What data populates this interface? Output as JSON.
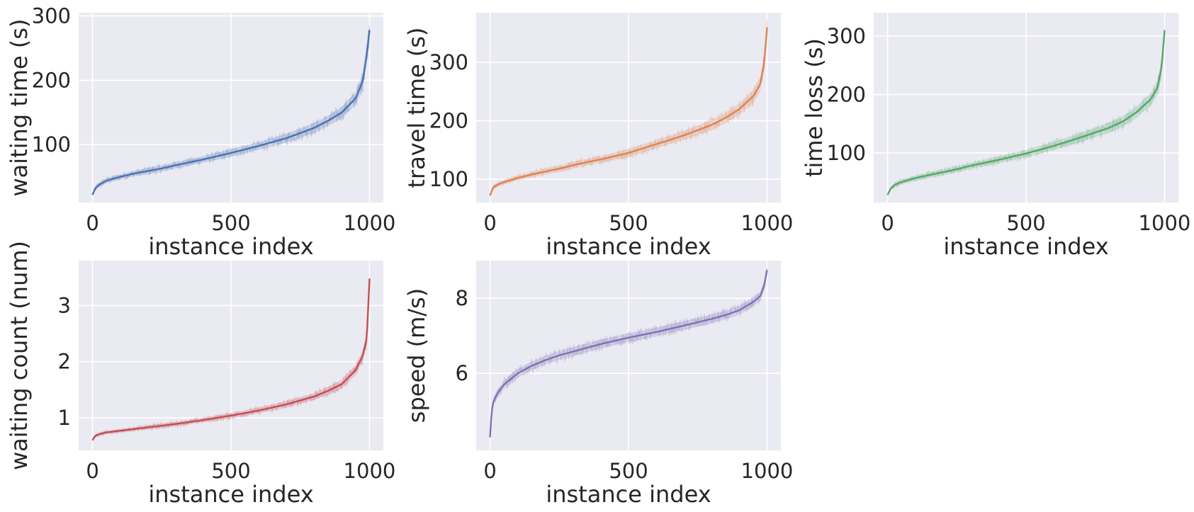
{
  "chart_data": [
    {
      "type": "line",
      "title": "",
      "xlabel": "instance index",
      "ylabel": "waiting time (s)",
      "xlim": [
        -50,
        1050
      ],
      "ylim": [
        10,
        305
      ],
      "xticks": [
        0,
        500,
        1000
      ],
      "yticks": [
        100,
        200,
        300
      ],
      "grid": true,
      "color": "#4c72b0",
      "series": [
        {
          "x": [
            0,
            10,
            25,
            50,
            100,
            150,
            200,
            250,
            300,
            400,
            500,
            600,
            700,
            800,
            850,
            900,
            950,
            975,
            990,
            1000
          ],
          "y": [
            22,
            32,
            38,
            44,
            50,
            55,
            59,
            63,
            68,
            77,
            87,
            98,
            110,
            126,
            137,
            150,
            172,
            198,
            240,
            278
          ],
          "band_half_width": [
            2,
            3,
            4,
            4,
            4,
            4,
            5,
            5,
            5,
            5,
            6,
            6,
            7,
            8,
            8,
            9,
            10,
            12,
            14,
            15
          ]
        }
      ]
    },
    {
      "type": "line",
      "title": "",
      "xlabel": "instance index",
      "ylabel": "travel time (s)",
      "xlim": [
        -50,
        1050
      ],
      "ylim": [
        60,
        385
      ],
      "xticks": [
        0,
        500,
        1000
      ],
      "yticks": [
        100,
        200,
        300
      ],
      "grid": true,
      "color": "#dd8452",
      "series": [
        {
          "x": [
            0,
            10,
            25,
            50,
            100,
            150,
            200,
            250,
            300,
            400,
            500,
            600,
            700,
            800,
            850,
            900,
            950,
            975,
            990,
            1000
          ],
          "y": [
            72,
            85,
            90,
            95,
            102,
            108,
            113,
            118,
            124,
            134,
            145,
            160,
            175,
            193,
            205,
            220,
            242,
            262,
            300,
            360
          ],
          "band_half_width": [
            2,
            3,
            4,
            4,
            4,
            5,
            5,
            5,
            6,
            6,
            7,
            7,
            8,
            9,
            9,
            10,
            11,
            12,
            14,
            15
          ]
        }
      ]
    },
    {
      "type": "line",
      "title": "",
      "xlabel": "instance index",
      "ylabel": "time loss (s)",
      "xlim": [
        -50,
        1050
      ],
      "ylim": [
        15,
        340
      ],
      "xticks": [
        0,
        500,
        1000
      ],
      "yticks": [
        100,
        200,
        300
      ],
      "grid": true,
      "color": "#55a868",
      "series": [
        {
          "x": [
            0,
            10,
            25,
            50,
            100,
            150,
            200,
            250,
            300,
            400,
            500,
            600,
            700,
            800,
            850,
            900,
            950,
            975,
            990,
            1000
          ],
          "y": [
            28,
            38,
            45,
            50,
            57,
            62,
            67,
            72,
            78,
            88,
            99,
            112,
            127,
            143,
            154,
            170,
            192,
            212,
            250,
            310
          ],
          "band_half_width": [
            2,
            3,
            4,
            4,
            4,
            5,
            5,
            5,
            5,
            6,
            6,
            7,
            8,
            9,
            9,
            10,
            11,
            12,
            14,
            15
          ]
        }
      ]
    },
    {
      "type": "line",
      "title": "",
      "xlabel": "instance index",
      "ylabel": "waiting count (num)",
      "xlim": [
        -50,
        1050
      ],
      "ylim": [
        0.42,
        3.8
      ],
      "xticks": [
        0,
        500,
        1000
      ],
      "yticks": [
        1,
        2,
        3
      ],
      "grid": true,
      "color": "#c44e52",
      "series": [
        {
          "x": [
            0,
            10,
            25,
            50,
            100,
            150,
            200,
            250,
            300,
            400,
            500,
            600,
            700,
            800,
            850,
            900,
            950,
            975,
            990,
            1000
          ],
          "y": [
            0.6,
            0.68,
            0.71,
            0.74,
            0.77,
            0.8,
            0.83,
            0.86,
            0.89,
            0.96,
            1.04,
            1.13,
            1.24,
            1.38,
            1.48,
            1.6,
            1.85,
            2.1,
            2.4,
            3.48
          ],
          "band_half_width": [
            0.02,
            0.03,
            0.03,
            0.03,
            0.03,
            0.03,
            0.04,
            0.04,
            0.04,
            0.04,
            0.05,
            0.05,
            0.06,
            0.06,
            0.07,
            0.08,
            0.09,
            0.1,
            0.12,
            0.15
          ]
        }
      ]
    },
    {
      "type": "line",
      "title": "",
      "xlabel": "instance index",
      "ylabel": "speed (m/s)",
      "xlim": [
        -50,
        1050
      ],
      "ylim": [
        3.95,
        9.0
      ],
      "xticks": [
        0,
        500,
        1000
      ],
      "yticks": [
        6,
        8
      ],
      "grid": true,
      "color": "#8172b3",
      "series": [
        {
          "x": [
            0,
            5,
            10,
            25,
            50,
            100,
            150,
            200,
            250,
            300,
            400,
            500,
            600,
            700,
            800,
            850,
            900,
            950,
            975,
            990,
            1000
          ],
          "y": [
            4.3,
            4.9,
            5.2,
            5.45,
            5.7,
            6.0,
            6.2,
            6.35,
            6.48,
            6.58,
            6.78,
            6.95,
            7.1,
            7.27,
            7.45,
            7.55,
            7.68,
            7.9,
            8.05,
            8.35,
            8.75
          ],
          "band_half_width": [
            0.05,
            0.08,
            0.1,
            0.1,
            0.12,
            0.12,
            0.12,
            0.12,
            0.12,
            0.12,
            0.12,
            0.12,
            0.12,
            0.12,
            0.12,
            0.12,
            0.12,
            0.12,
            0.12,
            0.12,
            0.1
          ]
        }
      ]
    }
  ]
}
